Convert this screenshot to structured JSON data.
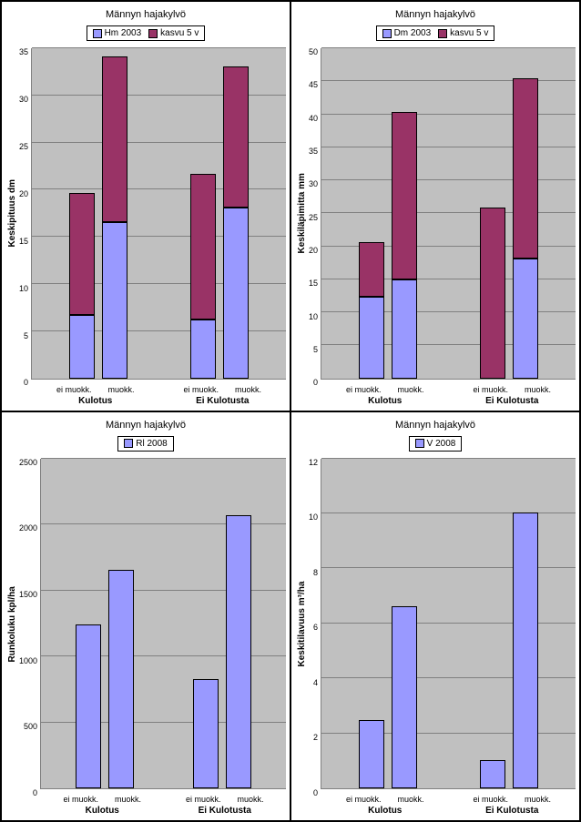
{
  "common": {
    "title": "Männyn  hajakylvö",
    "groups": [
      "Kulotus",
      "Ei Kulotusta"
    ],
    "categories": [
      "ei muokk.",
      "muokk.",
      "ei muokk.",
      "muokk."
    ]
  },
  "colors": {
    "blue": "#9999ff",
    "maroon": "#993366",
    "plot_bg": "#c0c0c0",
    "grid": "#808080"
  },
  "charts": [
    {
      "id": "topleft",
      "ylabel": "Keskipituus dm",
      "ymax": 35,
      "ystep": 5,
      "legend": [
        {
          "label": "Hm 2003",
          "color": "#9999ff"
        },
        {
          "label": "kasvu 5 v",
          "color": "#993366"
        }
      ],
      "stacked": true,
      "series": [
        {
          "color": "#9999ff",
          "values": [
            6.5,
            16,
            6,
            17.5
          ]
        },
        {
          "color": "#993366",
          "values": [
            12.5,
            17,
            15,
            14.5
          ]
        }
      ]
    },
    {
      "id": "topright",
      "ylabel": "Keskiläpimitta mm",
      "ymax": 50,
      "ystep": 5,
      "legend": [
        {
          "label": "Dm 2003",
          "color": "#9999ff"
        },
        {
          "label": "kasvu 5 v",
          "color": "#993366"
        }
      ],
      "stacked": true,
      "series": [
        {
          "color": "#9999ff",
          "values": [
            12,
            14.5,
            0,
            17.5
          ]
        },
        {
          "color": "#993366",
          "values": [
            8,
            24.5,
            25,
            26.5
          ]
        }
      ]
    },
    {
      "id": "botleft",
      "ylabel": "Runkoluku kpl/ha",
      "ymax": 2500,
      "ystep": 500,
      "legend": [
        {
          "label": "Rl 2008",
          "color": "#9999ff"
        }
      ],
      "stacked": false,
      "series": [
        {
          "color": "#9999ff",
          "values": [
            1200,
            1600,
            800,
            2000
          ]
        }
      ]
    },
    {
      "id": "botright",
      "ylabel": "Keskitilavuus  m³/ha",
      "ymax": 12,
      "ystep": 2,
      "legend": [
        {
          "label": "V 2008",
          "color": "#9999ff"
        }
      ],
      "stacked": false,
      "series": [
        {
          "color": "#9999ff",
          "values": [
            2.4,
            6.4,
            1.0,
            9.7
          ]
        }
      ]
    }
  ]
}
